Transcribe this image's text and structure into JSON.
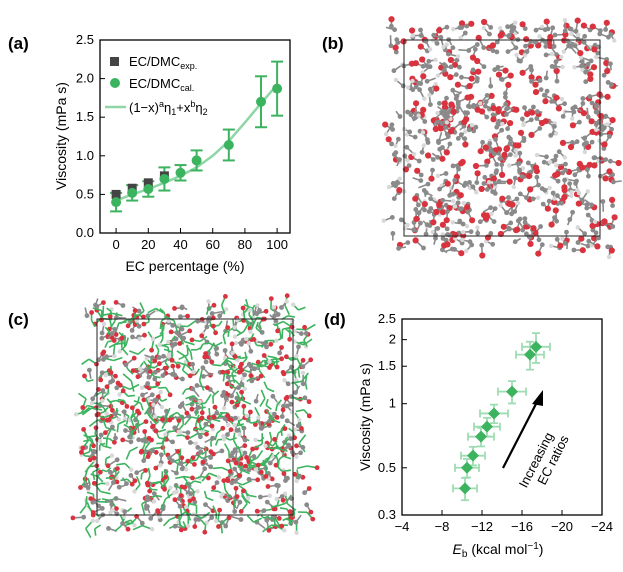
{
  "panels": {
    "a": "(a)",
    "b": "(b)",
    "c": "(c)",
    "d": "(d)"
  },
  "colors": {
    "green": "#3cb35e",
    "green_line": "#8fd6a7",
    "exp": "#444444",
    "oxygen": "#d9333f",
    "carbon": "#8a8a8a",
    "hydrogen": "#d8d8d8"
  },
  "chart_data": [
    {
      "id": "a",
      "type": "scatter",
      "xlabel": "EC percentage (%)",
      "ylabel": "Viscosity (mPa s)",
      "xlim": [
        -10,
        108
      ],
      "ylim": [
        0,
        2.5
      ],
      "xticks": [
        0,
        20,
        40,
        60,
        80,
        100
      ],
      "yticks": [
        0.0,
        0.5,
        1.0,
        1.5,
        2.0,
        2.5
      ],
      "ytick_labels": [
        "0.0",
        "0.5",
        "1.0",
        "1.5",
        "2.0",
        "2.5"
      ],
      "legend": {
        "position": "top-left",
        "exp_main": "EC/DMC",
        "exp_sub": "exp.",
        "cal_main": "EC/DMC",
        "cal_sub": "cal.",
        "fit_label": "(1−x)^a η1 + x^b η2"
      },
      "series": [
        {
          "name": "EC/DMC exp.",
          "x": [
            0,
            10,
            20,
            30
          ],
          "y": [
            0.5,
            0.58,
            0.65,
            0.74
          ]
        },
        {
          "name": "EC/DMC cal.",
          "x": [
            0,
            10,
            20,
            30,
            40,
            50,
            70,
            90,
            100
          ],
          "y": [
            0.4,
            0.52,
            0.57,
            0.7,
            0.78,
            0.94,
            1.14,
            1.7,
            1.87
          ],
          "err": [
            0.12,
            0.1,
            0.1,
            0.15,
            0.1,
            0.13,
            0.2,
            0.33,
            0.35
          ]
        },
        {
          "name": "(1−x)^a η1 + x^b η2",
          "x": [
            0,
            10,
            20,
            30,
            40,
            50,
            60,
            70,
            80,
            90,
            100
          ],
          "y": [
            0.42,
            0.5,
            0.57,
            0.65,
            0.74,
            0.85,
            1.0,
            1.19,
            1.43,
            1.68,
            1.92
          ]
        }
      ]
    },
    {
      "id": "d",
      "type": "scatter",
      "xlabel_main": "E",
      "xlabel_sub": "b",
      "xlabel_unit": "(kcal mol",
      "xlabel_exp": "−1",
      "ylabel": "Viscosity (mPa s)",
      "xlim": [
        -4,
        -24
      ],
      "ylim": [
        0.3,
        2.5
      ],
      "yscale": "log",
      "xticks": [
        -4,
        -8,
        -12,
        -16,
        -20,
        -24
      ],
      "xtick_labels": [
        "−4",
        "−8",
        "−12",
        "−16",
        "−20",
        "−24"
      ],
      "yticks": [
        0.3,
        0.5,
        1,
        1.5,
        2,
        2.5
      ],
      "ytick_labels": [
        "0.3",
        "0.5",
        "1",
        "1.5",
        "2",
        "2.5"
      ],
      "annotation": [
        "Increasing",
        "EC ratios"
      ],
      "series": [
        {
          "name": "EC/DMC",
          "x": [
            -10.3,
            -10.5,
            -11.1,
            -11.9,
            -12.5,
            -13.2,
            -15.0,
            -16.8,
            -17.4
          ],
          "y": [
            0.4,
            0.5,
            0.57,
            0.7,
            0.78,
            0.9,
            1.14,
            1.7,
            1.85
          ],
          "xerr": [
            1.2,
            1.2,
            1.2,
            1.3,
            1.3,
            1.4,
            1.4,
            1.4,
            1.4
          ],
          "yerr_frac": [
            0.12,
            0.1,
            0.1,
            0.1,
            0.1,
            0.1,
            0.12,
            0.15,
            0.16
          ]
        }
      ]
    }
  ]
}
